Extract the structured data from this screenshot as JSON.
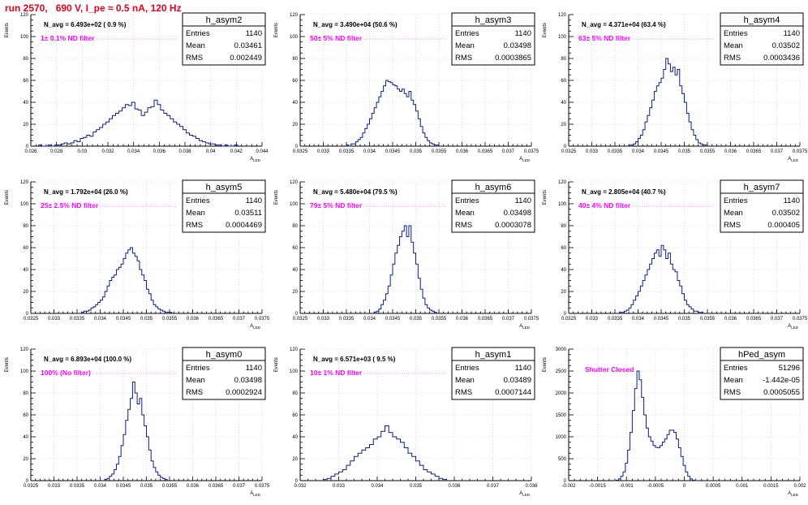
{
  "page": {
    "title": "run 2570,   690 V, I_pe ≈ 0.5 nA, 120 Hz"
  },
  "chart_data": [
    {
      "type": "bar",
      "name": "h_asym2",
      "entries": "1140",
      "mean": "0.03461",
      "rms": "0.002449",
      "navg": "N_avg = 6.493e+02 ( 0.9 %)",
      "filter": "1± 0.1% ND filter",
      "xlabel": "A_LED",
      "ylabel": "Events",
      "xlim": [
        0.026,
        0.044
      ],
      "ylim": [
        0,
        120
      ],
      "xticks": [
        0.026,
        0.028,
        0.03,
        0.032,
        0.034,
        0.036,
        0.038,
        0.04,
        0.042,
        0.044
      ],
      "xtick_labels": [
        "0.026",
        "0.028",
        "0.03",
        "0.032",
        "0.034",
        "0.036",
        "0.038",
        "0.04",
        "0.042",
        "0.044"
      ],
      "yticks": [
        0,
        20,
        40,
        60,
        80,
        100,
        120
      ],
      "bin_start": 0.0266,
      "bin_width": 0.00025,
      "counts": [
        1,
        0,
        0,
        1,
        0,
        1,
        1,
        2,
        3,
        2,
        3,
        5,
        4,
        7,
        8,
        10,
        9,
        13,
        15,
        17,
        20,
        22,
        25,
        28,
        30,
        32,
        35,
        38,
        37,
        40,
        34,
        33,
        28,
        31,
        35,
        36,
        42,
        38,
        33,
        30,
        28,
        25,
        22,
        20,
        18,
        15,
        12,
        10,
        9,
        7,
        5,
        4,
        3,
        2,
        2,
        1,
        1,
        0,
        1,
        0,
        0,
        1
      ]
    },
    {
      "type": "bar",
      "name": "h_asym3",
      "entries": "1140",
      "mean": "0.03498",
      "rms": "0.0003865",
      "navg": "N_avg = 3.490e+04 (50.6 %)",
      "filter": "50± 5% ND filter",
      "xlabel": "A_LED",
      "ylabel": "Events",
      "xlim": [
        0.0325,
        0.0375
      ],
      "ylim": [
        0,
        120
      ],
      "xticks": [
        0.0325,
        0.033,
        0.0335,
        0.034,
        0.0345,
        0.035,
        0.0355,
        0.036,
        0.0365,
        0.037,
        0.0375
      ],
      "xtick_labels": [
        "0.0325",
        "0.033",
        "0.0335",
        "0.034",
        "0.0345",
        "0.035",
        "0.0355",
        "0.036",
        "0.0365",
        "0.037",
        "0.0375"
      ],
      "yticks": [
        0,
        20,
        40,
        60,
        80,
        100,
        120
      ],
      "bin_start": 0.0335,
      "bin_width": 5e-05,
      "counts": [
        1,
        0,
        2,
        2,
        4,
        6,
        8,
        12,
        16,
        20,
        25,
        30,
        35,
        40,
        45,
        50,
        55,
        60,
        59,
        58,
        56,
        55,
        52,
        50,
        52,
        48,
        45,
        50,
        42,
        38,
        32,
        25,
        18,
        12,
        8,
        5,
        3,
        2,
        1,
        1
      ]
    },
    {
      "type": "bar",
      "name": "h_asym4",
      "entries": "1140",
      "mean": "0.03502",
      "rms": "0.0003436",
      "navg": "N_avg = 4.371e+04 (63.4 %)",
      "filter": "63± 5% ND filter",
      "xlabel": "A_LED",
      "ylabel": "Events",
      "xlim": [
        0.0325,
        0.0375
      ],
      "ylim": [
        0,
        120
      ],
      "xticks": [
        0.0325,
        0.033,
        0.0335,
        0.034,
        0.0345,
        0.035,
        0.0355,
        0.036,
        0.0365,
        0.037,
        0.0375
      ],
      "xtick_labels": [
        "0.0325",
        "0.033",
        "0.0335",
        "0.034",
        "0.0345",
        "0.035",
        "0.0355",
        "0.036",
        "0.0365",
        "0.037",
        "0.0375"
      ],
      "yticks": [
        0,
        20,
        40,
        60,
        80,
        100,
        120
      ],
      "bin_start": 0.0338,
      "bin_width": 5e-05,
      "counts": [
        1,
        1,
        2,
        4,
        7,
        10,
        15,
        22,
        28,
        35,
        42,
        50,
        55,
        58,
        62,
        70,
        80,
        75,
        68,
        72,
        65,
        70,
        55,
        48,
        40,
        30,
        22,
        15,
        10,
        6,
        3,
        2,
        1,
        1
      ]
    },
    {
      "type": "bar",
      "name": "h_asym5",
      "entries": "1140",
      "mean": "0.03511",
      "rms": "0.0004469",
      "navg": "N_avg = 1.792e+04 (26.0 %)",
      "filter": "25± 2.5% ND filter",
      "xlabel": "A_LED",
      "ylabel": "Events",
      "xlim": [
        0.0325,
        0.0375
      ],
      "ylim": [
        0,
        120
      ],
      "xticks": [
        0.0325,
        0.033,
        0.0335,
        0.034,
        0.0345,
        0.035,
        0.0355,
        0.036,
        0.0365,
        0.037,
        0.0375
      ],
      "xtick_labels": [
        "0.0325",
        "0.033",
        "0.0335",
        "0.034",
        "0.0345",
        "0.035",
        "0.0355",
        "0.036",
        "0.0365",
        "0.037",
        "0.0375"
      ],
      "yticks": [
        0,
        20,
        40,
        60,
        80,
        100,
        120
      ],
      "bin_start": 0.0336,
      "bin_width": 5e-05,
      "counts": [
        1,
        2,
        2,
        3,
        5,
        6,
        8,
        10,
        12,
        15,
        20,
        25,
        30,
        33,
        35,
        40,
        42,
        45,
        50,
        55,
        58,
        60,
        55,
        52,
        48,
        40,
        35,
        30,
        22,
        18,
        12,
        8,
        6,
        4,
        3,
        2,
        1,
        1,
        1
      ]
    },
    {
      "type": "bar",
      "name": "h_asym6",
      "entries": "1140",
      "mean": "0.03498",
      "rms": "0.0003078",
      "navg": "N_avg = 5.480e+04 (79.5 %)",
      "filter": "79± 5% ND filter",
      "xlabel": "A_LED",
      "ylabel": "Events",
      "xlim": [
        0.0325,
        0.0375
      ],
      "ylim": [
        0,
        120
      ],
      "xticks": [
        0.0325,
        0.033,
        0.0335,
        0.034,
        0.0345,
        0.035,
        0.0355,
        0.036,
        0.0365,
        0.037,
        0.0375
      ],
      "xtick_labels": [
        "0.0325",
        "0.033",
        "0.0335",
        "0.034",
        "0.0345",
        "0.035",
        "0.0355",
        "0.036",
        "0.0365",
        "0.037",
        "0.0375"
      ],
      "yticks": [
        0,
        20,
        40,
        60,
        80,
        100,
        120
      ],
      "bin_start": 0.0341,
      "bin_width": 5e-05,
      "counts": [
        1,
        2,
        4,
        8,
        12,
        18,
        25,
        35,
        45,
        55,
        62,
        70,
        75,
        80,
        70,
        80,
        65,
        55,
        45,
        32,
        22,
        14,
        8,
        5,
        3,
        2,
        1
      ]
    },
    {
      "type": "bar",
      "name": "h_asym7",
      "entries": "1140",
      "mean": "0.03502",
      "rms": "0.000405",
      "navg": "N_avg = 2.805e+04 (40.7 %)",
      "filter": "40± 4% ND filter",
      "xlabel": "A_LED",
      "ylabel": "Events",
      "xlim": [
        0.0325,
        0.0375
      ],
      "ylim": [
        0,
        120
      ],
      "xticks": [
        0.0325,
        0.033,
        0.0335,
        0.034,
        0.0345,
        0.035,
        0.0355,
        0.036,
        0.0365,
        0.037,
        0.0375
      ],
      "xtick_labels": [
        "0.0325",
        "0.033",
        "0.0335",
        "0.034",
        "0.0345",
        "0.035",
        "0.0355",
        "0.036",
        "0.0365",
        "0.037",
        "0.0375"
      ],
      "yticks": [
        0,
        20,
        40,
        60,
        80,
        100,
        120
      ],
      "bin_start": 0.0336,
      "bin_width": 5e-05,
      "counts": [
        1,
        1,
        2,
        3,
        5,
        8,
        12,
        16,
        20,
        25,
        30,
        35,
        40,
        45,
        50,
        55,
        58,
        52,
        62,
        58,
        50,
        55,
        45,
        40,
        38,
        30,
        25,
        18,
        12,
        8,
        6,
        4,
        2,
        2,
        1,
        1
      ]
    },
    {
      "type": "bar",
      "name": "h_asym0",
      "entries": "1140",
      "mean": "0.03498",
      "rms": "0.0002924",
      "navg": "N_avg = 6.893e+04 (100.0 %)",
      "filter": "100% (No filter)",
      "xlabel": "A_LED",
      "ylabel": "Events",
      "xlim": [
        0.0325,
        0.0375
      ],
      "ylim": [
        0,
        120
      ],
      "xticks": [
        0.0325,
        0.033,
        0.0335,
        0.034,
        0.0345,
        0.035,
        0.0355,
        0.036,
        0.0365,
        0.037,
        0.0375
      ],
      "xtick_labels": [
        "0.0325",
        "0.033",
        "0.0335",
        "0.034",
        "0.0345",
        "0.035",
        "0.0355",
        "0.036",
        "0.0365",
        "0.037",
        "0.0375"
      ],
      "yticks": [
        0,
        20,
        40,
        60,
        80,
        100,
        120
      ],
      "bin_start": 0.0341,
      "bin_width": 5e-05,
      "counts": [
        1,
        2,
        4,
        6,
        10,
        15,
        22,
        32,
        42,
        55,
        65,
        75,
        90,
        80,
        70,
        75,
        60,
        50,
        40,
        28,
        18,
        12,
        8,
        5,
        3,
        2,
        1
      ]
    },
    {
      "type": "bar",
      "name": "h_asym1",
      "entries": "1140",
      "mean": "0.03489",
      "rms": "0.0007144",
      "navg": "N_avg = 6.571e+03 ( 9.5 %)",
      "filter": "10± 1% ND filter",
      "xlabel": "A_LED",
      "ylabel": "Events",
      "xlim": [
        0.032,
        0.038
      ],
      "ylim": [
        0,
        120
      ],
      "xticks": [
        0.032,
        0.033,
        0.034,
        0.035,
        0.036,
        0.037,
        0.038
      ],
      "xtick_labels": [
        "0.032",
        "0.033",
        "0.034",
        "0.035",
        "0.036",
        "0.037",
        "0.038"
      ],
      "yticks": [
        0,
        20,
        40,
        60,
        80,
        100,
        120
      ],
      "bin_start": 0.0326,
      "bin_width": 0.0001,
      "counts": [
        1,
        2,
        4,
        6,
        8,
        10,
        14,
        18,
        22,
        25,
        28,
        30,
        33,
        38,
        40,
        45,
        50,
        44,
        40,
        38,
        35,
        30,
        25,
        22,
        18,
        14,
        10,
        8,
        6,
        4,
        2,
        1
      ]
    },
    {
      "type": "bar",
      "name": "hPed_asym",
      "entries": "51296",
      "mean": "-1.442e-05",
      "rms": "0.0005055",
      "navg": "",
      "filter": "Shutter Closed",
      "xlabel": "A_LED",
      "ylabel": "Events",
      "xlim": [
        -0.002,
        0.002
      ],
      "ylim": [
        0,
        3000
      ],
      "xticks": [
        -0.002,
        -0.0015,
        -0.001,
        -0.0005,
        0,
        0.0005,
        0.001,
        0.0015,
        0.002
      ],
      "xtick_labels": [
        "-0.002",
        "-0.0015",
        "-0.001",
        "-0.0005",
        "0",
        "0.0005",
        "0.001",
        "0.0015",
        "0.002"
      ],
      "yticks": [
        0,
        500,
        1000,
        1500,
        2000,
        2500,
        3000
      ],
      "bin_start": -0.00122,
      "bin_width": 4e-05,
      "counts": [
        0,
        10,
        40,
        100,
        200,
        400,
        700,
        1100,
        1600,
        2100,
        2500,
        2300,
        1900,
        1500,
        1200,
        1000,
        900,
        800,
        760,
        750,
        800,
        880,
        950,
        1050,
        1150,
        1150,
        1100,
        950,
        750,
        550,
        350,
        200,
        100,
        40,
        10,
        0
      ]
    }
  ]
}
